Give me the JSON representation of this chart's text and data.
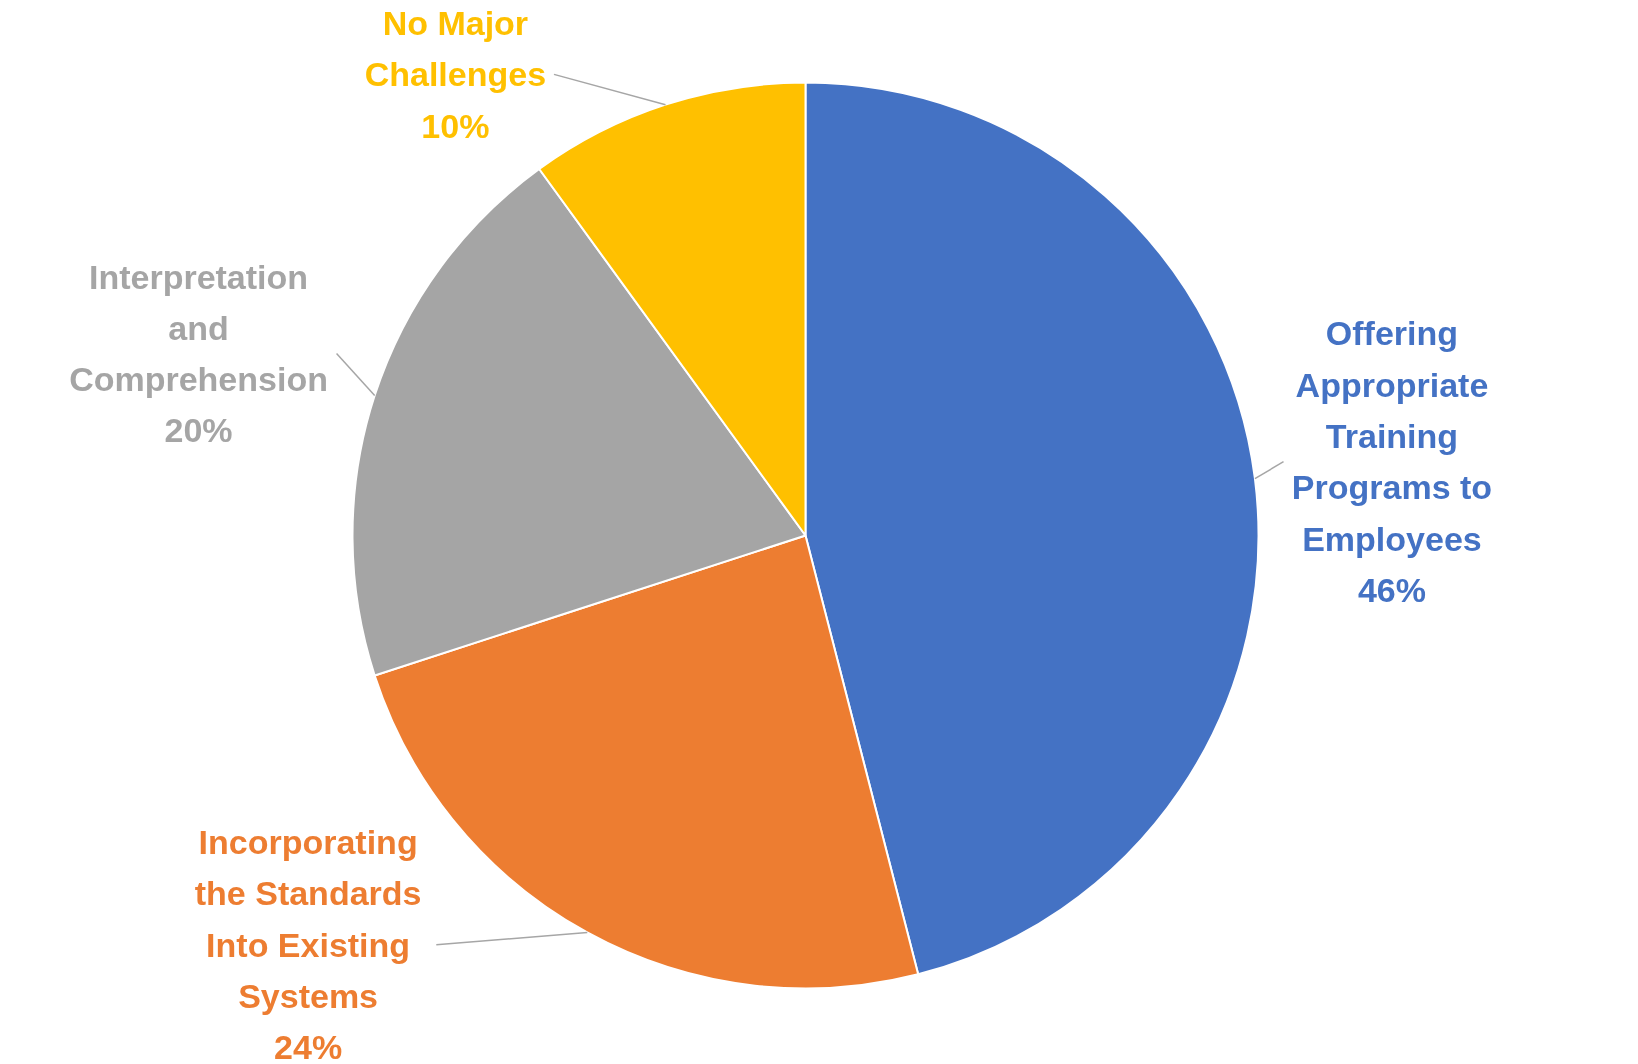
{
  "chart_data": {
    "type": "pie",
    "categories": [
      "Offering Appropriate Training Programs to Employees",
      "Incorporating the Standards Into Existing Systems",
      "Interpretation and Comprehension",
      "No Major Challenges"
    ],
    "values": [
      46,
      24,
      20,
      10
    ],
    "value_labels": [
      "46%",
      "24%",
      "20%",
      "10%"
    ],
    "colors": [
      "#4472c4",
      "#ed7d31",
      "#a5a5a5",
      "#ffc000"
    ],
    "legend": false
  }
}
